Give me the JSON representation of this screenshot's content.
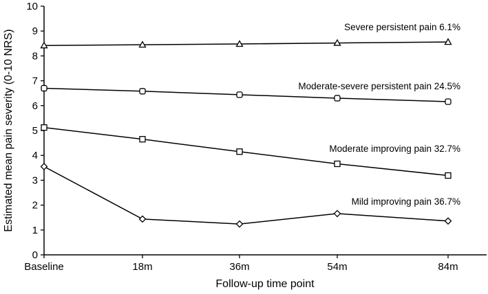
{
  "chart_data": {
    "type": "line",
    "title": "",
    "xlabel": "Follow-up time point",
    "ylabel": "Estimated mean pain severity (0-10 NRS)",
    "categories": [
      "Baseline",
      "18m",
      "36m",
      "54m",
      "84m"
    ],
    "ylim": [
      0,
      10
    ],
    "yticks": [
      0,
      1,
      2,
      3,
      4,
      5,
      6,
      7,
      8,
      9,
      10
    ],
    "grid": false,
    "legend": "inline labels next to series",
    "series": [
      {
        "name": "Severe persistent pain 6.1%",
        "marker": "triangle",
        "values": [
          8.42,
          8.45,
          8.48,
          8.52,
          8.56
        ]
      },
      {
        "name": "Moderate-severe persistent pain 24.5%",
        "marker": "circle",
        "values": [
          6.7,
          6.58,
          6.44,
          6.3,
          6.16
        ]
      },
      {
        "name": "Moderate improving pain 32.7%",
        "marker": "square",
        "values": [
          5.12,
          4.65,
          4.15,
          3.66,
          3.19
        ]
      },
      {
        "name": "Mild improving pain 36.7%",
        "marker": "diamond",
        "values": [
          3.55,
          1.44,
          1.24,
          1.66,
          1.36
        ]
      }
    ]
  }
}
